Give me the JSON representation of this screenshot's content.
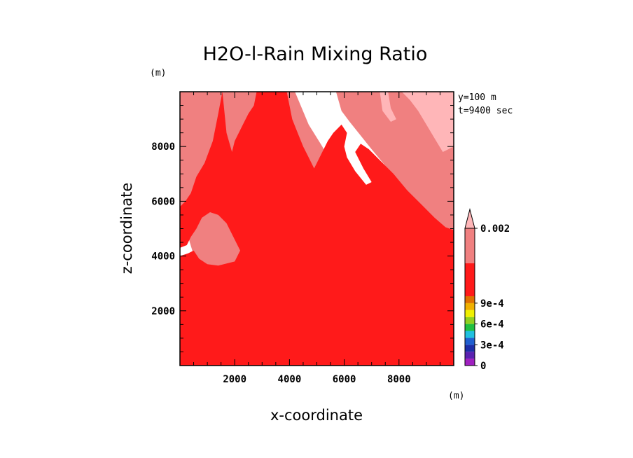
{
  "chart_data": {
    "type": "heatmap",
    "title": "H2O-l-Rain Mixing Ratio",
    "xlabel": "x-coordinate",
    "ylabel": "z-coordinate",
    "x_unit": "(m)",
    "y_unit": "(m)",
    "annotations": [
      "y=100 m",
      "t=9400 sec"
    ],
    "xlim": [
      0,
      10000
    ],
    "ylim": [
      0,
      10000
    ],
    "x_ticks": [
      2000,
      4000,
      6000,
      8000
    ],
    "y_ticks": [
      2000,
      4000,
      6000,
      8000
    ],
    "colorbar": {
      "labels": [
        "0",
        "3e-4",
        "6e-4",
        "9e-4",
        "0.002"
      ],
      "levels": [
        {
          "value": 0,
          "color": "#a020c0"
        },
        {
          "value": 0.0001,
          "color": "#5a22b0"
        },
        {
          "value": 0.0002,
          "color": "#1c2ea8"
        },
        {
          "value": 0.0003,
          "color": "#1f5fd0"
        },
        {
          "value": 0.0004,
          "color": "#20c0e0"
        },
        {
          "value": 0.0005,
          "color": "#20c040"
        },
        {
          "value": 0.0006,
          "color": "#90d020"
        },
        {
          "value": 0.0007,
          "color": "#f0f000"
        },
        {
          "value": 0.0008,
          "color": "#f0b000"
        },
        {
          "value": 0.0009,
          "color": "#e07000"
        },
        {
          "value": 0.001,
          "color": "#ff1a1a"
        },
        {
          "value": 0.002,
          "color": "#f08080"
        },
        {
          "value": 0.0025,
          "color": "#ffb6b8"
        }
      ]
    },
    "regions": [
      {
        "level": 0.002,
        "color": "#f08080",
        "polygon": [
          [
            0,
            10000
          ],
          [
            10000,
            10000
          ],
          [
            10000,
            4900
          ],
          [
            9700,
            5000
          ],
          [
            9200,
            5400
          ],
          [
            8600,
            6000
          ],
          [
            8000,
            6700
          ],
          [
            7500,
            7300
          ],
          [
            7000,
            7900
          ],
          [
            6600,
            8400
          ],
          [
            6200,
            8900
          ],
          [
            5900,
            9300
          ],
          [
            5700,
            10000
          ],
          [
            4200,
            10000
          ],
          [
            4700,
            8800
          ],
          [
            5200,
            8000
          ],
          [
            5600,
            7200
          ],
          [
            6000,
            6000
          ],
          [
            6400,
            5000
          ],
          [
            6500,
            3800
          ],
          [
            6000,
            3000
          ],
          [
            5000,
            2500
          ],
          [
            3000,
            2500
          ],
          [
            1500,
            3000
          ],
          [
            600,
            3700
          ],
          [
            300,
            4700
          ],
          [
            100,
            5200
          ],
          [
            0,
            5300
          ]
        ]
      },
      {
        "level": 0.001,
        "color": "#ff1a1a",
        "polygon": [
          [
            0,
            0
          ],
          [
            10000,
            0
          ],
          [
            10000,
            4950
          ],
          [
            9700,
            5050
          ],
          [
            9300,
            5400
          ],
          [
            8800,
            5900
          ],
          [
            8300,
            6400
          ],
          [
            7800,
            7000
          ],
          [
            7300,
            7500
          ],
          [
            6900,
            7900
          ],
          [
            6600,
            8100
          ],
          [
            6400,
            7800
          ],
          [
            6700,
            7200
          ],
          [
            7000,
            6700
          ],
          [
            6800,
            6600
          ],
          [
            6400,
            7100
          ],
          [
            6100,
            7600
          ],
          [
            6000,
            8000
          ],
          [
            6100,
            8500
          ],
          [
            5900,
            8800
          ],
          [
            5600,
            8500
          ],
          [
            5400,
            8200
          ],
          [
            5200,
            7800
          ],
          [
            5000,
            7400
          ],
          [
            4900,
            7200
          ],
          [
            4700,
            7600
          ],
          [
            4500,
            8000
          ],
          [
            4300,
            8500
          ],
          [
            4100,
            9000
          ],
          [
            3900,
            10000
          ],
          [
            2800,
            10000
          ],
          [
            2700,
            9500
          ],
          [
            2500,
            9200
          ],
          [
            2300,
            8800
          ],
          [
            2000,
            8200
          ],
          [
            1900,
            7800
          ],
          [
            1700,
            8500
          ],
          [
            1550,
            10000
          ],
          [
            1400,
            9200
          ],
          [
            1200,
            8200
          ],
          [
            900,
            7400
          ],
          [
            600,
            6900
          ],
          [
            400,
            6300
          ],
          [
            200,
            6000
          ],
          [
            0,
            5800
          ],
          [
            0,
            4300
          ],
          [
            250,
            4400
          ],
          [
            400,
            4700
          ],
          [
            600,
            5000
          ],
          [
            800,
            5400
          ],
          [
            1100,
            5600
          ],
          [
            1400,
            5500
          ],
          [
            1700,
            5200
          ],
          [
            2000,
            4600
          ],
          [
            2200,
            4200
          ],
          [
            2000,
            3800
          ],
          [
            1400,
            3650
          ],
          [
            1000,
            3700
          ],
          [
            700,
            3900
          ],
          [
            500,
            4200
          ],
          [
            300,
            4100
          ],
          [
            0,
            4000
          ]
        ]
      },
      {
        "level": 0.0025,
        "color": "#ffb6b8",
        "polygon": [
          [
            8100,
            10000
          ],
          [
            10000,
            10000
          ],
          [
            10000,
            8000
          ],
          [
            9600,
            7800
          ],
          [
            9300,
            8300
          ],
          [
            9000,
            8800
          ],
          [
            8700,
            9300
          ],
          [
            8400,
            9700
          ]
        ]
      },
      {
        "level": 0.0025,
        "color": "#ffb6b8",
        "polygon": [
          [
            7300,
            10000
          ],
          [
            7600,
            10000
          ],
          [
            7700,
            9400
          ],
          [
            7900,
            9000
          ],
          [
            7700,
            8900
          ],
          [
            7400,
            9300
          ]
        ]
      }
    ]
  }
}
